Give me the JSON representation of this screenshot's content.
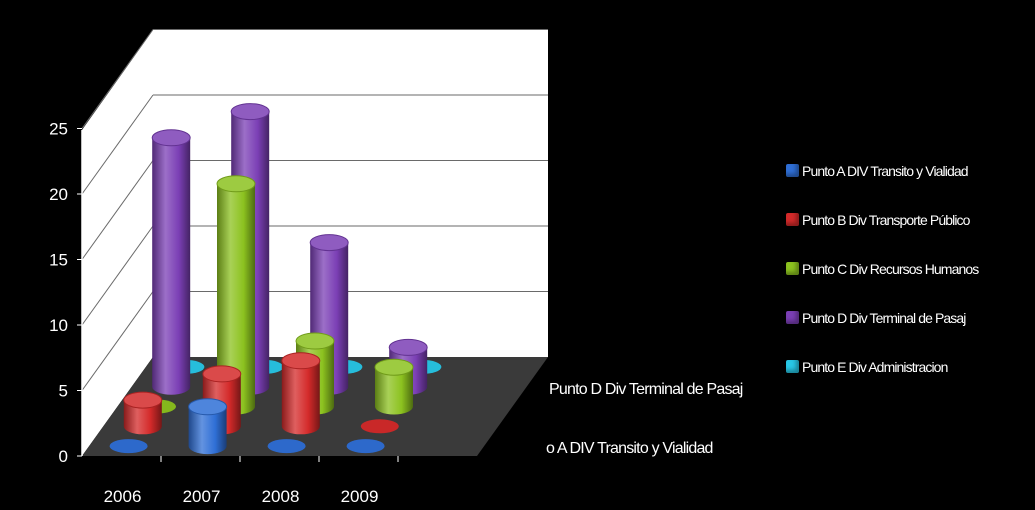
{
  "chart_data": {
    "type": "bar",
    "style": "3d-cylinder",
    "categories": [
      "2006",
      "2007",
      "2008",
      "2009"
    ],
    "depth_labels": [
      "Punto D Div Terminal de Pasaj",
      "o A DIV Transito y Vialidad"
    ],
    "ylim": [
      0,
      25
    ],
    "yticks": [
      "0",
      "5",
      "10",
      "15",
      "20",
      "25"
    ],
    "series": [
      {
        "name": "Punto A DIV Transito y Vialidad",
        "color": "#2f6fd6",
        "values": [
          0,
          3,
          0,
          0
        ]
      },
      {
        "name": "Punto B Div Transporte Público",
        "color": "#d42a2a",
        "values": [
          2,
          4,
          5,
          0
        ]
      },
      {
        "name": "Punto C Div Recursos Humanos",
        "color": "#8cc21f",
        "values": [
          0,
          17,
          5,
          3
        ]
      },
      {
        "name": "Punto D Div Terminal de Pasaj",
        "color": "#7b3fb5",
        "values": [
          19,
          21,
          11,
          3
        ]
      },
      {
        "name": "Punto E Div Administracion",
        "color": "#28c7e6",
        "values": [
          0,
          0,
          0,
          0
        ]
      }
    ],
    "legend_position": "right",
    "grid": true
  }
}
